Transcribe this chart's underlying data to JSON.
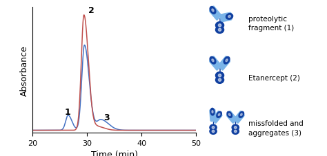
{
  "xlim": [
    20,
    50
  ],
  "ylim": [
    0,
    1.0
  ],
  "xlabel": "Time (min)",
  "ylabel": "Absorbance",
  "label1": "1",
  "label2": "2",
  "label3": "3",
  "blue_color": "#4472C4",
  "red_color": "#C0504D",
  "legend_labels": [
    "proteolytic\nfragment (1)",
    "Etanercept (2)",
    "missfolded and\naggregates (3)"
  ],
  "background_color": "#ffffff",
  "axis_fontsize": 9,
  "tick_fontsize": 8
}
